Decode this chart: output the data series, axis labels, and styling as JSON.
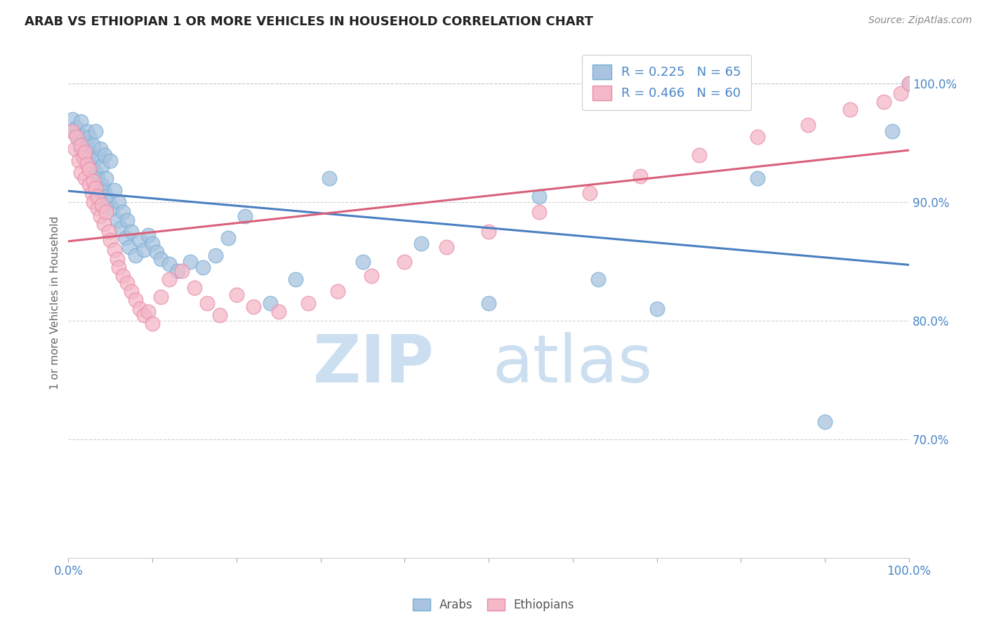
{
  "title": "ARAB VS ETHIOPIAN 1 OR MORE VEHICLES IN HOUSEHOLD CORRELATION CHART",
  "source": "Source: ZipAtlas.com",
  "ylabel": "1 or more Vehicles in Household",
  "xlim": [
    0.0,
    1.0
  ],
  "ylim": [
    0.6,
    1.03
  ],
  "arab_color": "#a8c4e0",
  "arab_edge_color": "#7aafd4",
  "ethiopian_color": "#f4b8c8",
  "ethiopian_edge_color": "#e88da8",
  "trend_arab_color": "#4a7fc1",
  "trend_ethiopian_color": "#d9607a",
  "legend_arab_r": "R = 0.225",
  "legend_arab_n": "N = 65",
  "legend_ethiopian_r": "R = 0.466",
  "legend_ethiopian_n": "N = 60",
  "legend_text_color": "#4a86c8",
  "arab_x": [
    0.005,
    0.008,
    0.01,
    0.012,
    0.015,
    0.015,
    0.018,
    0.02,
    0.02,
    0.022,
    0.025,
    0.025,
    0.028,
    0.03,
    0.03,
    0.032,
    0.033,
    0.035,
    0.035,
    0.038,
    0.04,
    0.04,
    0.042,
    0.043,
    0.045,
    0.045,
    0.048,
    0.05,
    0.052,
    0.055,
    0.058,
    0.06,
    0.062,
    0.065,
    0.068,
    0.07,
    0.072,
    0.075,
    0.08,
    0.085,
    0.09,
    0.095,
    0.1,
    0.105,
    0.11,
    0.12,
    0.13,
    0.145,
    0.16,
    0.175,
    0.19,
    0.21,
    0.24,
    0.27,
    0.31,
    0.35,
    0.42,
    0.5,
    0.56,
    0.63,
    0.7,
    0.82,
    0.9,
    0.98,
    1.0
  ],
  "arab_y": [
    0.97,
    0.958,
    0.963,
    0.952,
    0.968,
    0.945,
    0.955,
    0.95,
    0.938,
    0.96,
    0.942,
    0.955,
    0.93,
    0.948,
    0.935,
    0.96,
    0.925,
    0.938,
    0.92,
    0.945,
    0.915,
    0.93,
    0.91,
    0.94,
    0.905,
    0.92,
    0.9,
    0.935,
    0.895,
    0.91,
    0.885,
    0.9,
    0.878,
    0.892,
    0.87,
    0.885,
    0.862,
    0.875,
    0.855,
    0.868,
    0.86,
    0.872,
    0.865,
    0.858,
    0.852,
    0.848,
    0.842,
    0.85,
    0.845,
    0.855,
    0.87,
    0.888,
    0.815,
    0.835,
    0.92,
    0.85,
    0.865,
    0.815,
    0.905,
    0.835,
    0.81,
    0.92,
    0.715,
    0.96,
    1.0
  ],
  "ethiopian_x": [
    0.005,
    0.008,
    0.01,
    0.012,
    0.015,
    0.015,
    0.018,
    0.02,
    0.02,
    0.022,
    0.025,
    0.025,
    0.028,
    0.03,
    0.03,
    0.032,
    0.035,
    0.035,
    0.038,
    0.04,
    0.042,
    0.045,
    0.048,
    0.05,
    0.055,
    0.058,
    0.06,
    0.065,
    0.07,
    0.075,
    0.08,
    0.085,
    0.09,
    0.095,
    0.1,
    0.11,
    0.12,
    0.135,
    0.15,
    0.165,
    0.18,
    0.2,
    0.22,
    0.25,
    0.285,
    0.32,
    0.36,
    0.4,
    0.45,
    0.5,
    0.56,
    0.62,
    0.68,
    0.75,
    0.82,
    0.88,
    0.93,
    0.97,
    0.99,
    1.0
  ],
  "ethiopian_y": [
    0.96,
    0.945,
    0.955,
    0.935,
    0.948,
    0.925,
    0.938,
    0.942,
    0.92,
    0.932,
    0.915,
    0.928,
    0.908,
    0.918,
    0.9,
    0.912,
    0.895,
    0.905,
    0.888,
    0.898,
    0.882,
    0.892,
    0.875,
    0.868,
    0.86,
    0.852,
    0.845,
    0.838,
    0.832,
    0.825,
    0.818,
    0.81,
    0.805,
    0.808,
    0.798,
    0.82,
    0.835,
    0.842,
    0.828,
    0.815,
    0.805,
    0.822,
    0.812,
    0.808,
    0.815,
    0.825,
    0.838,
    0.85,
    0.862,
    0.875,
    0.892,
    0.908,
    0.922,
    0.94,
    0.955,
    0.965,
    0.978,
    0.985,
    0.992,
    1.0
  ]
}
